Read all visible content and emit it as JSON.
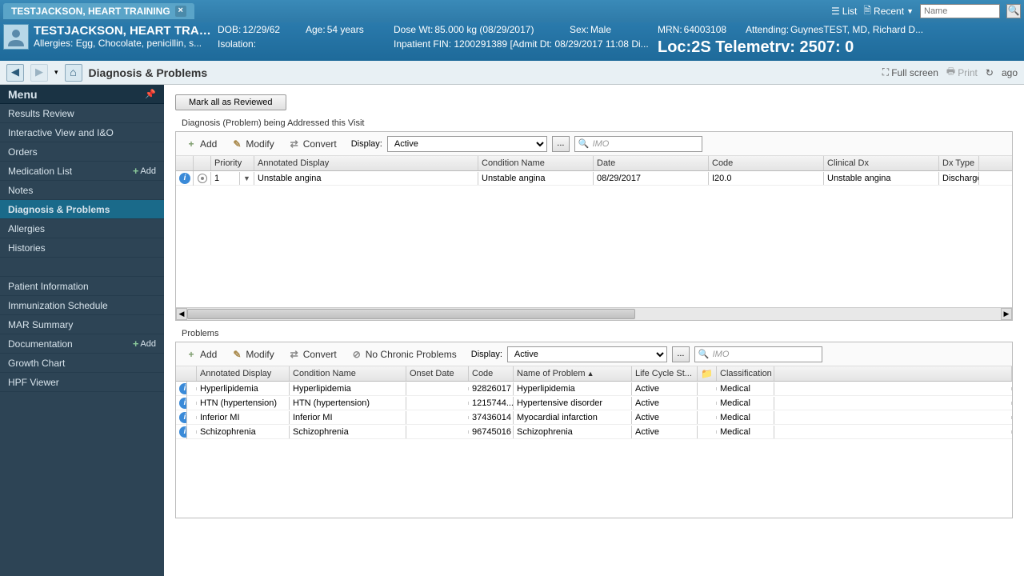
{
  "titlebar": {
    "tab_title": "TESTJACKSON, HEART TRAINING",
    "list": "List",
    "recent": "Recent",
    "search_placeholder": "Name"
  },
  "patient": {
    "name": "TESTJACKSON, HEART TRAI...",
    "allergies": "Allergies: Egg, Chocolate, penicillin, s...",
    "dob_label": "DOB:",
    "dob": "12/29/62",
    "age_label": "Age:",
    "age": "54 years",
    "dose_label": "Dose Wt:",
    "dose": "85.000 kg (08/29/2017)",
    "sex_label": "Sex:",
    "sex": "Male",
    "mrn_label": "MRN:",
    "mrn": "64003108",
    "attending_label": "Attending:",
    "attending": "GuynesTEST, MD, Richard D...",
    "isolation_label": "Isolation:",
    "fin_label": "Inpatient FIN: 1200291389 [Admit Dt: 08/29/2017 11:08 Di...",
    "loc": "Loc:2S Telemetrv: 2507: 0"
  },
  "toolbar2": {
    "page_title": "Diagnosis & Problems",
    "fullscreen": "Full screen",
    "print": "Print",
    "ago": "ago"
  },
  "menu": {
    "header": "Menu",
    "items": [
      {
        "label": "Results Review"
      },
      {
        "label": "Interactive View and I&O"
      },
      {
        "label": "Orders"
      },
      {
        "label": "Medication List",
        "add": "Add"
      },
      {
        "label": "Notes"
      },
      {
        "label": "Diagnosis & Problems",
        "selected": true
      },
      {
        "label": "Allergies"
      },
      {
        "label": "Histories"
      }
    ],
    "items2": [
      {
        "label": "Patient Information"
      },
      {
        "label": "Immunization Schedule"
      },
      {
        "label": "MAR Summary"
      },
      {
        "label": "Documentation",
        "add": "Add"
      },
      {
        "label": "Growth Chart"
      },
      {
        "label": "HPF Viewer"
      }
    ]
  },
  "diag": {
    "mark_all": "Mark all as Reviewed",
    "section": "Diagnosis (Problem) being Addressed this Visit",
    "add": "Add",
    "modify": "Modify",
    "convert": "Convert",
    "display_label": "Display:",
    "display_value": "Active",
    "imo": "IMO",
    "cols": {
      "priority": "Priority",
      "annotated": "Annotated Display",
      "condition": "Condition Name",
      "date": "Date",
      "code": "Code",
      "clinical": "Clinical Dx",
      "dxtype": "Dx Type"
    },
    "rows": [
      {
        "priority": "1",
        "annotated": "Unstable angina",
        "condition": "Unstable angina",
        "date": "08/29/2017",
        "code": "I20.0",
        "clinical": "Unstable angina",
        "dxtype": "Discharge"
      }
    ]
  },
  "problems": {
    "section": "Problems",
    "add": "Add",
    "modify": "Modify",
    "convert": "Convert",
    "nochronic": "No Chronic Problems",
    "display_label": "Display:",
    "display_value": "Active",
    "imo": "IMO",
    "cols": {
      "annotated": "Annotated Display",
      "condition": "Condition Name",
      "onset": "Onset Date",
      "code": "Code",
      "name": "Name of Problem",
      "life": "Life Cycle St...",
      "class": "Classification"
    },
    "rows": [
      {
        "annotated": "Hyperlipidemia",
        "condition": "Hyperlipidemia",
        "onset": "",
        "code": "92826017",
        "name": "Hyperlipidemia",
        "life": "Active",
        "class": "Medical"
      },
      {
        "annotated": "HTN (hypertension)",
        "condition": "HTN (hypertension)",
        "onset": "",
        "code": "1215744...",
        "name": "Hypertensive disorder",
        "life": "Active",
        "class": "Medical"
      },
      {
        "annotated": "Inferior MI",
        "condition": "Inferior MI",
        "onset": "",
        "code": "37436014",
        "name": "Myocardial infarction",
        "life": "Active",
        "class": "Medical"
      },
      {
        "annotated": "Schizophrenia",
        "condition": "Schizophrenia",
        "onset": "",
        "code": "96745016",
        "name": "Schizophrenia",
        "life": "Active",
        "class": "Medical"
      }
    ]
  }
}
